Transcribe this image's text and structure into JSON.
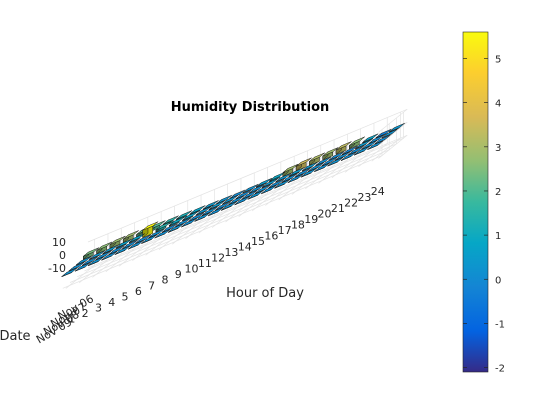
{
  "chart_data": {
    "type": "bar3",
    "title": "Humidity Distribution",
    "xlabel": "Hour of Day",
    "ylabel": "Date",
    "x_ticks": [
      "1",
      "2",
      "3",
      "4",
      "5",
      "6",
      "7",
      "8",
      "9",
      "10",
      "11",
      "12",
      "13",
      "14",
      "15",
      "16",
      "17",
      "18",
      "19",
      "20",
      "21",
      "22",
      "23",
      "24"
    ],
    "y_ticks": [
      "Nov 06",
      "Nov 07",
      "Nov 08",
      "Nov 09"
    ],
    "z_ticks": [
      "10",
      "0",
      "-10"
    ],
    "zlim": [
      -10,
      10
    ],
    "series": [
      {
        "date": "Nov 06",
        "values": [
          2.4,
          2.6,
          2.8,
          2.9,
          2.2,
          2.0,
          1.5,
          1.2,
          0.8,
          0.4,
          0.2,
          0.0,
          0.2,
          0.5,
          0.9,
          2.9,
          3.5,
          3.1,
          2.9,
          3.3,
          2.6,
          0.7,
          -0.3,
          0.3
        ]
      },
      {
        "date": "Nov 07",
        "values": [
          0.2,
          0.3,
          0.4,
          0.6,
          0.7,
          5.6,
          1.4,
          0.9,
          0.7,
          0.3,
          0.4,
          0.3,
          0.0,
          0.1,
          0.4,
          0.3,
          0.5,
          0.4,
          0.1,
          0.0,
          -0.2,
          0.4,
          0.0,
          0.2
        ]
      },
      {
        "date": "Nov 08",
        "values": [
          0.1,
          0.0,
          0.1,
          0.0,
          0.0,
          0.0,
          0.1,
          0.0,
          0.1,
          0.0,
          0.1,
          0.0,
          0.1,
          0.0,
          0.1,
          0.0,
          0.1,
          0.0,
          0.1,
          0.0,
          0.1,
          0.0,
          0.1,
          0.0
        ]
      },
      {
        "date": "Nov 09",
        "values": [
          0.2,
          0.1,
          0.2,
          0.1,
          0.2,
          0.1,
          0.2,
          0.1,
          0.2,
          0.1,
          0.2,
          0.1,
          0.2,
          0.1,
          0.2,
          0.1,
          0.2,
          0.1,
          0.2,
          0.1,
          0.2,
          0.1,
          0.2,
          0.1
        ]
      }
    ],
    "colorbar": {
      "colormap": "parula",
      "range": [
        -2.1,
        5.6
      ],
      "ticks": [
        "5",
        "4",
        "3",
        "2",
        "1",
        "0",
        "-1",
        "-2"
      ]
    },
    "grid": true
  }
}
